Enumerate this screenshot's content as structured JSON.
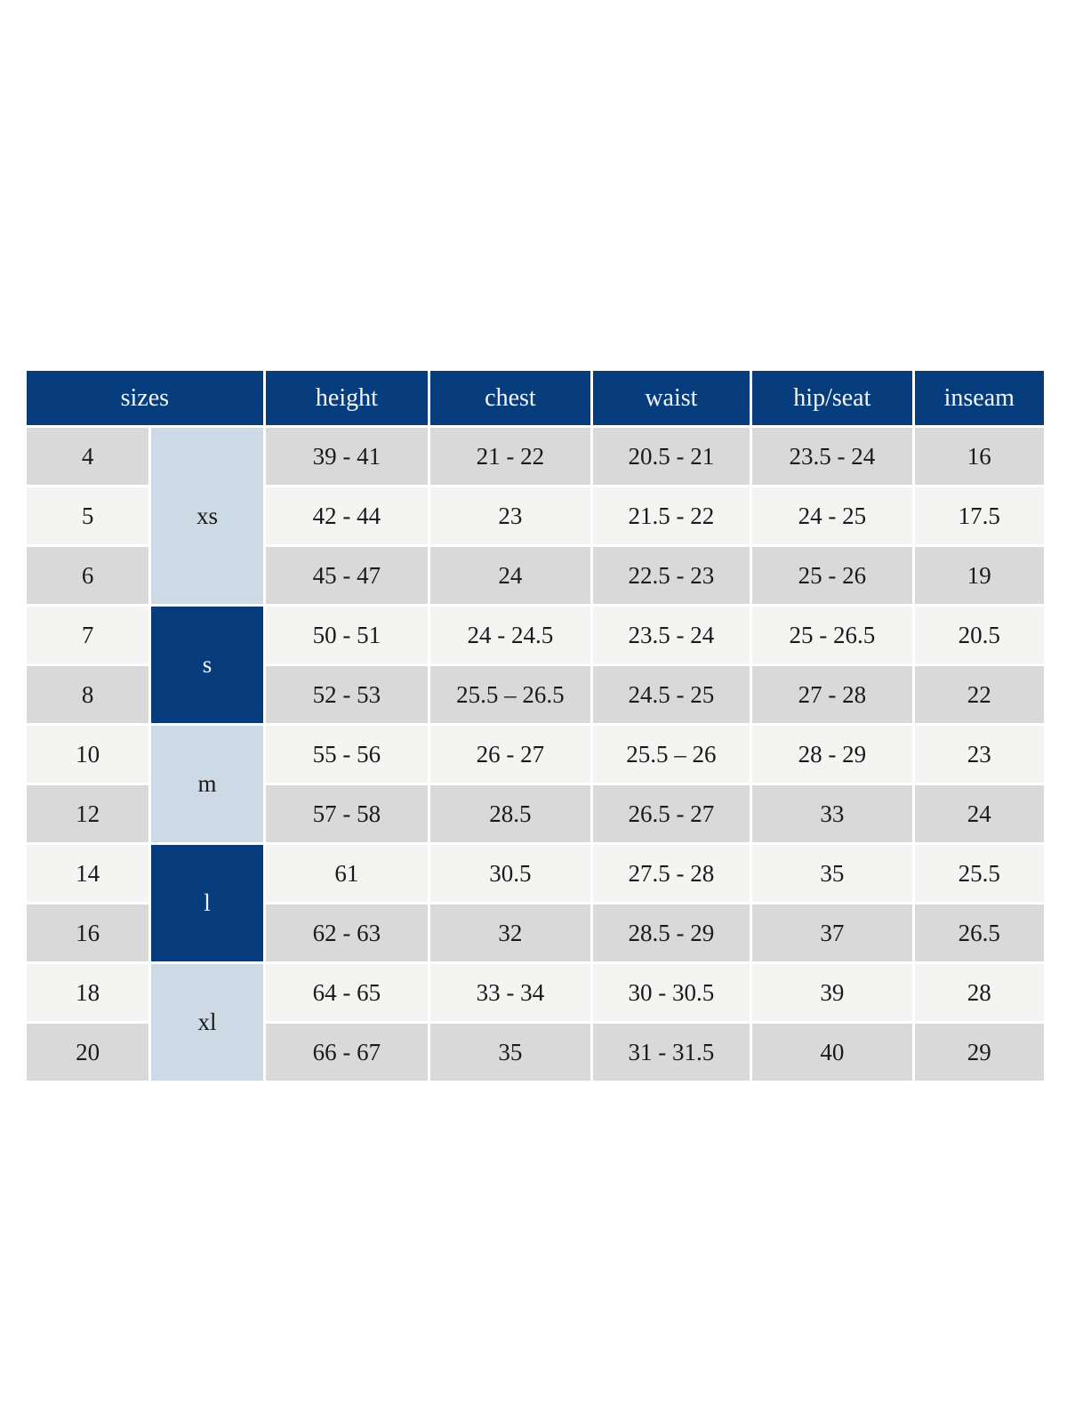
{
  "table": {
    "columns": [
      "sizes",
      "height",
      "chest",
      "waist",
      "hip/seat",
      "inseam"
    ],
    "groups": [
      {
        "label": "xs",
        "tone": "light",
        "rows": [
          {
            "size": "4",
            "height": "39 - 41",
            "chest": "21 - 22",
            "waist": "20.5 - 21",
            "hip_seat": "23.5 - 24",
            "inseam": "16"
          },
          {
            "size": "5",
            "height": "42 - 44",
            "chest": "23",
            "waist": "21.5 - 22",
            "hip_seat": "24 - 25",
            "inseam": "17.5"
          },
          {
            "size": "6",
            "height": "45 - 47",
            "chest": "24",
            "waist": "22.5 - 23",
            "hip_seat": "25 - 26",
            "inseam": "19"
          }
        ]
      },
      {
        "label": "s",
        "tone": "dark",
        "rows": [
          {
            "size": "7",
            "height": "50 - 51",
            "chest": "24 - 24.5",
            "waist": "23.5 - 24",
            "hip_seat": "25 - 26.5",
            "inseam": "20.5"
          },
          {
            "size": "8",
            "height": "52 - 53",
            "chest": "25.5 – 26.5",
            "waist": "24.5 - 25",
            "hip_seat": "27 - 28",
            "inseam": "22"
          }
        ]
      },
      {
        "label": "m",
        "tone": "light",
        "rows": [
          {
            "size": "10",
            "height": "55 - 56",
            "chest": "26 - 27",
            "waist": "25.5 – 26",
            "hip_seat": "28 - 29",
            "inseam": "23"
          },
          {
            "size": "12",
            "height": "57 - 58",
            "chest": "28.5",
            "waist": "26.5 - 27",
            "hip_seat": "33",
            "inseam": "24"
          }
        ]
      },
      {
        "label": "l",
        "tone": "dark",
        "rows": [
          {
            "size": "14",
            "height": "61",
            "chest": "30.5",
            "waist": "27.5 - 28",
            "hip_seat": "35",
            "inseam": "25.5"
          },
          {
            "size": "16",
            "height": "62 - 63",
            "chest": "32",
            "waist": "28.5 - 29",
            "hip_seat": "37",
            "inseam": "26.5"
          }
        ]
      },
      {
        "label": "xl",
        "tone": "light",
        "rows": [
          {
            "size": "18",
            "height": "64 - 65",
            "chest": "33 - 34",
            "waist": "30 - 30.5",
            "hip_seat": "39",
            "inseam": "28"
          },
          {
            "size": "20",
            "height": "66 - 67",
            "chest": "35",
            "waist": "31 - 31.5",
            "hip_seat": "40",
            "inseam": "29"
          }
        ]
      }
    ],
    "colors": {
      "header_bg": "#083d7d",
      "header_text": "#f5f6f8",
      "group_light_bg": "#ced9e6",
      "row_gray": "#d9d9d9",
      "row_light": "#f4f4f2",
      "body_text": "#1a1a1a",
      "border_white": "#ffffff"
    }
  }
}
